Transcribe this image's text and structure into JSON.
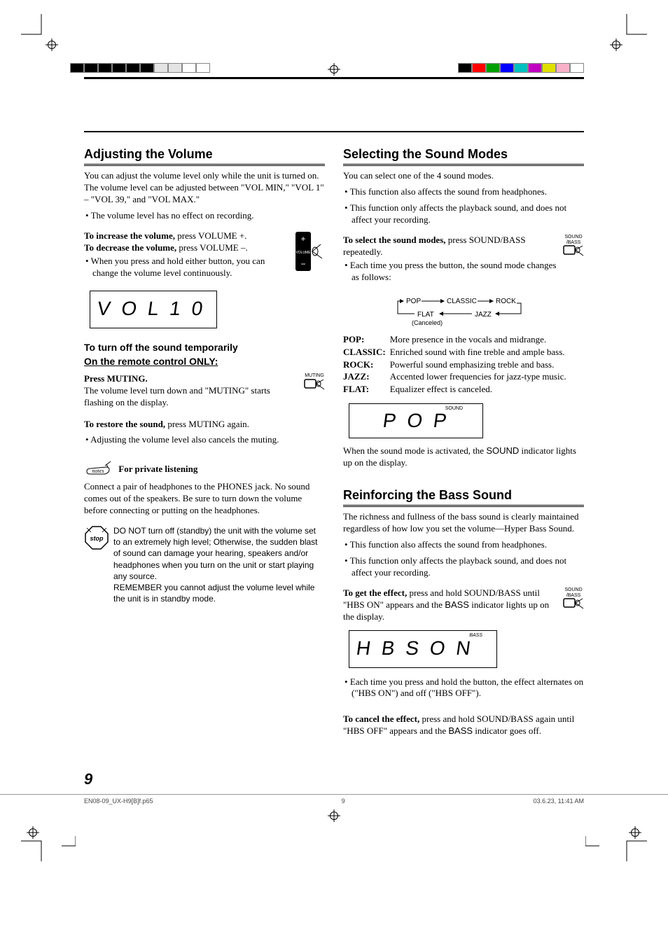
{
  "marks": {
    "top_bar_colors_left": [
      "#000000",
      "#000000",
      "#000000",
      "#000000",
      "#000000",
      "#000000",
      "#e4e4e4",
      "#e4e4e4",
      "#ffffff",
      "#ffffff"
    ],
    "top_bar_colors_right": [
      "#000000",
      "#ff0000",
      "#00a000",
      "#0000ff",
      "#00c0c0",
      "#c000c0",
      "#e0e000",
      "#f7b0c7",
      "#ffffff"
    ]
  },
  "left": {
    "h_volume": "Adjusting the Volume",
    "vol_intro": "You can adjust the volume level only while the unit is turned on. The volume level can be adjusted between \"VOL MIN,\" \"VOL 1\" – \"VOL 39,\" and \"VOL MAX.\"",
    "vol_note1": "The volume level has no effect on recording.",
    "inc_bold": "To increase the volume,",
    "inc_rest": " press VOLUME +.",
    "dec_bold": "To decrease the volume,",
    "dec_rest": " press VOLUME –.",
    "hold_note": "When you press and hold either button, you can change the volume level continuously.",
    "remote_volume_label": "VOLUME",
    "lcd_vol": "V O L       1 0",
    "h_mute1": "To turn off the sound temporarily",
    "h_mute2": "On the remote control ONLY:",
    "press_muting": "Press MUTING.",
    "muting_desc": "The volume level turn down and \"MUTING\" starts flashing on the display.",
    "muting_label": "MUTING",
    "restore_bold": "To restore the sound,",
    "restore_rest": " press MUTING again.",
    "restore_note": "Adjusting the volume level also cancels the muting.",
    "private_head": "For private listening",
    "private_body": "Connect a pair of headphones to the PHONES jack. No sound comes out of the speakers. Be sure to turn down the volume before connecting or putting on the headphones.",
    "caution1": "DO NOT turn off (standby) the unit with the volume set to an extremely high level; Otherwise, the sudden blast of sound can damage your hearing, speakers and/or headphones when you turn on the unit or start playing any source.",
    "caution2": "REMEMBER you cannot adjust the volume level while the unit is in standby mode."
  },
  "right": {
    "h_sound": "Selecting the Sound Modes",
    "sound_intro": "You can select one of the 4 sound modes.",
    "sound_b1": "This function also affects the sound from headphones.",
    "sound_b2": "This function only affects the playback sound, and does not affect your recording.",
    "select_bold": "To select the sound modes,",
    "select_rest": " press SOUND/BASS repeatedly.",
    "select_note": "Each time you press the button, the sound mode changes as follows:",
    "sb_label1": "SOUND",
    "sb_label2": "/BASS",
    "flow": {
      "pop": "POP",
      "classic": "CLASSIC",
      "rock": "ROCK",
      "jazz": "JAZZ",
      "flat": "FLAT",
      "canceled": "(Canceled)"
    },
    "defs": {
      "POP:": "More presence in the vocals and midrange.",
      "CLASSIC:": "Enriched sound with fine treble and ample bass.",
      "ROCK:": "Powerful sound emphasizing treble and bass.",
      "JAZZ:": "Accented lower frequencies for jazz-type music.",
      "FLAT:": "Equalizer effect is canceled."
    },
    "lcd_pop": "P O P",
    "lcd_pop_ind": "SOUND",
    "activated_pre": "When the sound mode is activated, the ",
    "activated_ind": "SOUND",
    "activated_post": " indicator lights up on the display.",
    "h_bass": "Reinforcing the Bass Sound",
    "bass_intro": "The richness and fullness of the bass sound is clearly maintained regardless of how low you set the volume—Hyper Bass Sound.",
    "bass_b1": "This function also affects the sound from headphones.",
    "bass_b2": "This function only affects the playback sound, and does not affect your recording.",
    "get_bold": "To get the effect,",
    "get_rest_pre": " press and hold SOUND/BASS until \"HBS ON\" appears and the ",
    "get_ind": "BASS",
    "get_rest_post": " indicator lights up on the display.",
    "lcd_hbs": "H B S    O N",
    "lcd_hbs_ind": "BASS",
    "alt_note": "Each time you press and hold the button, the effect alternates on (\"HBS ON\") and off (\"HBS OFF\").",
    "cancel_bold": "To cancel the effect,",
    "cancel_rest_pre": " press and hold SOUND/BASS again until \"HBS OFF\" appears and the ",
    "cancel_ind": "BASS",
    "cancel_rest_post": " indicator goes off."
  },
  "page_number": "9",
  "footer": {
    "file": "EN08-09_UX-H9[B]f.p65",
    "page": "9",
    "date": "03.6.23, 11:41 AM"
  }
}
